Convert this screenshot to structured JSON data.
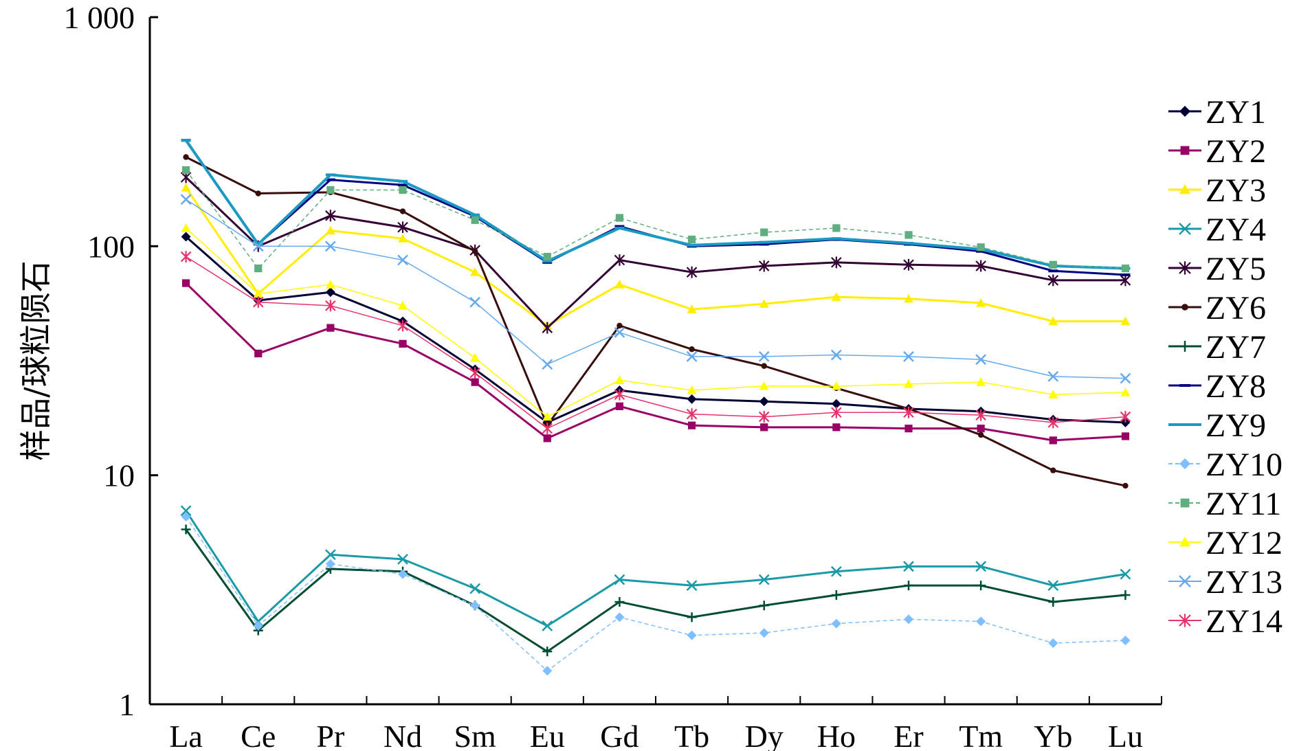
{
  "chart_data": {
    "type": "line",
    "title": "",
    "xlabel": "",
    "ylabel": "样品/球粒陨石",
    "yscale": "log",
    "ylim": [
      1,
      1000
    ],
    "yticks": [
      {
        "value": 1000,
        "label": "1 000"
      },
      {
        "value": 100,
        "label": "100"
      },
      {
        "value": 10,
        "label": "10"
      },
      {
        "value": 1,
        "label": "1"
      }
    ],
    "grid": false,
    "legend_position": "right",
    "categories": [
      "La",
      "Ce",
      "Pr",
      "Nd",
      "Sm",
      "Eu",
      "Gd",
      "Tb",
      "Dy",
      "Ho",
      "Er",
      "Tm",
      "Yb",
      "Lu"
    ],
    "series": [
      {
        "name": "ZY1",
        "color": "#000033",
        "marker": "diamond",
        "width": 3,
        "values": [
          110,
          58,
          63,
          47,
          29,
          17,
          23.5,
          21.5,
          21,
          20.5,
          19.5,
          19,
          17.5,
          17
        ]
      },
      {
        "name": "ZY2",
        "color": "#990066",
        "marker": "square",
        "width": 3,
        "values": [
          69,
          34,
          44,
          37.5,
          25.5,
          14.5,
          20,
          16.5,
          16.2,
          16.2,
          16,
          16,
          14.2,
          14.8
        ]
      },
      {
        "name": "ZY3",
        "color": "#ffee00",
        "marker": "triangle",
        "width": 3,
        "values": [
          180,
          62,
          117,
          108,
          77,
          45,
          68,
          53,
          56,
          60,
          59,
          56.5,
          47,
          47
        ]
      },
      {
        "name": "ZY4",
        "color": "#1a99a6",
        "marker": "x",
        "width": 3,
        "values": [
          7,
          2.3,
          4.5,
          4.3,
          3.2,
          2.2,
          3.5,
          3.3,
          3.5,
          3.8,
          4.0,
          4.0,
          3.3,
          3.7
        ]
      },
      {
        "name": "ZY5",
        "color": "#330033",
        "marker": "star",
        "width": 3,
        "values": [
          200,
          100,
          136,
          121,
          96,
          44,
          87,
          77,
          82,
          85,
          83,
          82,
          71,
          71
        ]
      },
      {
        "name": "ZY6",
        "color": "#3a0d0d",
        "marker": "dot",
        "width": 3,
        "values": [
          245,
          170,
          172,
          142,
          95,
          16.5,
          45,
          35.5,
          30,
          24,
          19.5,
          15,
          10.5,
          9
        ]
      },
      {
        "name": "ZY7",
        "color": "#004d33",
        "marker": "plus",
        "width": 3,
        "values": [
          5.8,
          2.1,
          3.9,
          3.8,
          2.7,
          1.7,
          2.8,
          2.4,
          2.7,
          3.0,
          3.3,
          3.3,
          2.8,
          3.0
        ]
      },
      {
        "name": "ZY8",
        "color": "#000080",
        "marker": "dash",
        "width": 3,
        "values": [
          290,
          102,
          195,
          185,
          135,
          85,
          122,
          100,
          102,
          107,
          102,
          95,
          78,
          75
        ]
      },
      {
        "name": "ZY9",
        "color": "#1a99c4",
        "marker": "dash",
        "width": 4,
        "values": [
          290,
          102,
          205,
          192,
          137,
          86,
          120,
          101,
          104,
          108,
          103,
          97,
          82,
          80
        ]
      },
      {
        "name": "ZY10",
        "color": "#7fbfff",
        "marker": "diamond",
        "width": 1.5,
        "dashed": true,
        "values": [
          6.6,
          2.2,
          4.1,
          3.7,
          2.7,
          1.4,
          2.4,
          2.0,
          2.05,
          2.25,
          2.35,
          2.3,
          1.85,
          1.9
        ]
      },
      {
        "name": "ZY11",
        "color": "#5fae7f",
        "marker": "square",
        "width": 1.5,
        "dashed": true,
        "values": [
          215,
          80,
          176,
          176,
          130,
          90,
          133,
          107,
          115,
          120,
          112,
          99,
          83,
          80
        ]
      },
      {
        "name": "ZY12",
        "color": "#ffff00",
        "marker": "triangle",
        "width": 1.5,
        "values": [
          120,
          62,
          68,
          55,
          32.5,
          18,
          26,
          23.5,
          24.5,
          24.5,
          25,
          25.5,
          22.5,
          23
        ]
      },
      {
        "name": "ZY13",
        "color": "#66aaee",
        "marker": "x",
        "width": 1.5,
        "values": [
          160,
          100,
          100,
          87,
          57,
          30.5,
          42,
          33,
          33,
          33.5,
          33,
          32,
          27,
          26.5
        ]
      },
      {
        "name": "ZY14",
        "color": "#e6336a",
        "marker": "star",
        "width": 1.5,
        "values": [
          90,
          57,
          55,
          45,
          28,
          16,
          22.5,
          18.5,
          18,
          18.8,
          18.8,
          18.3,
          17,
          18
        ]
      }
    ]
  }
}
